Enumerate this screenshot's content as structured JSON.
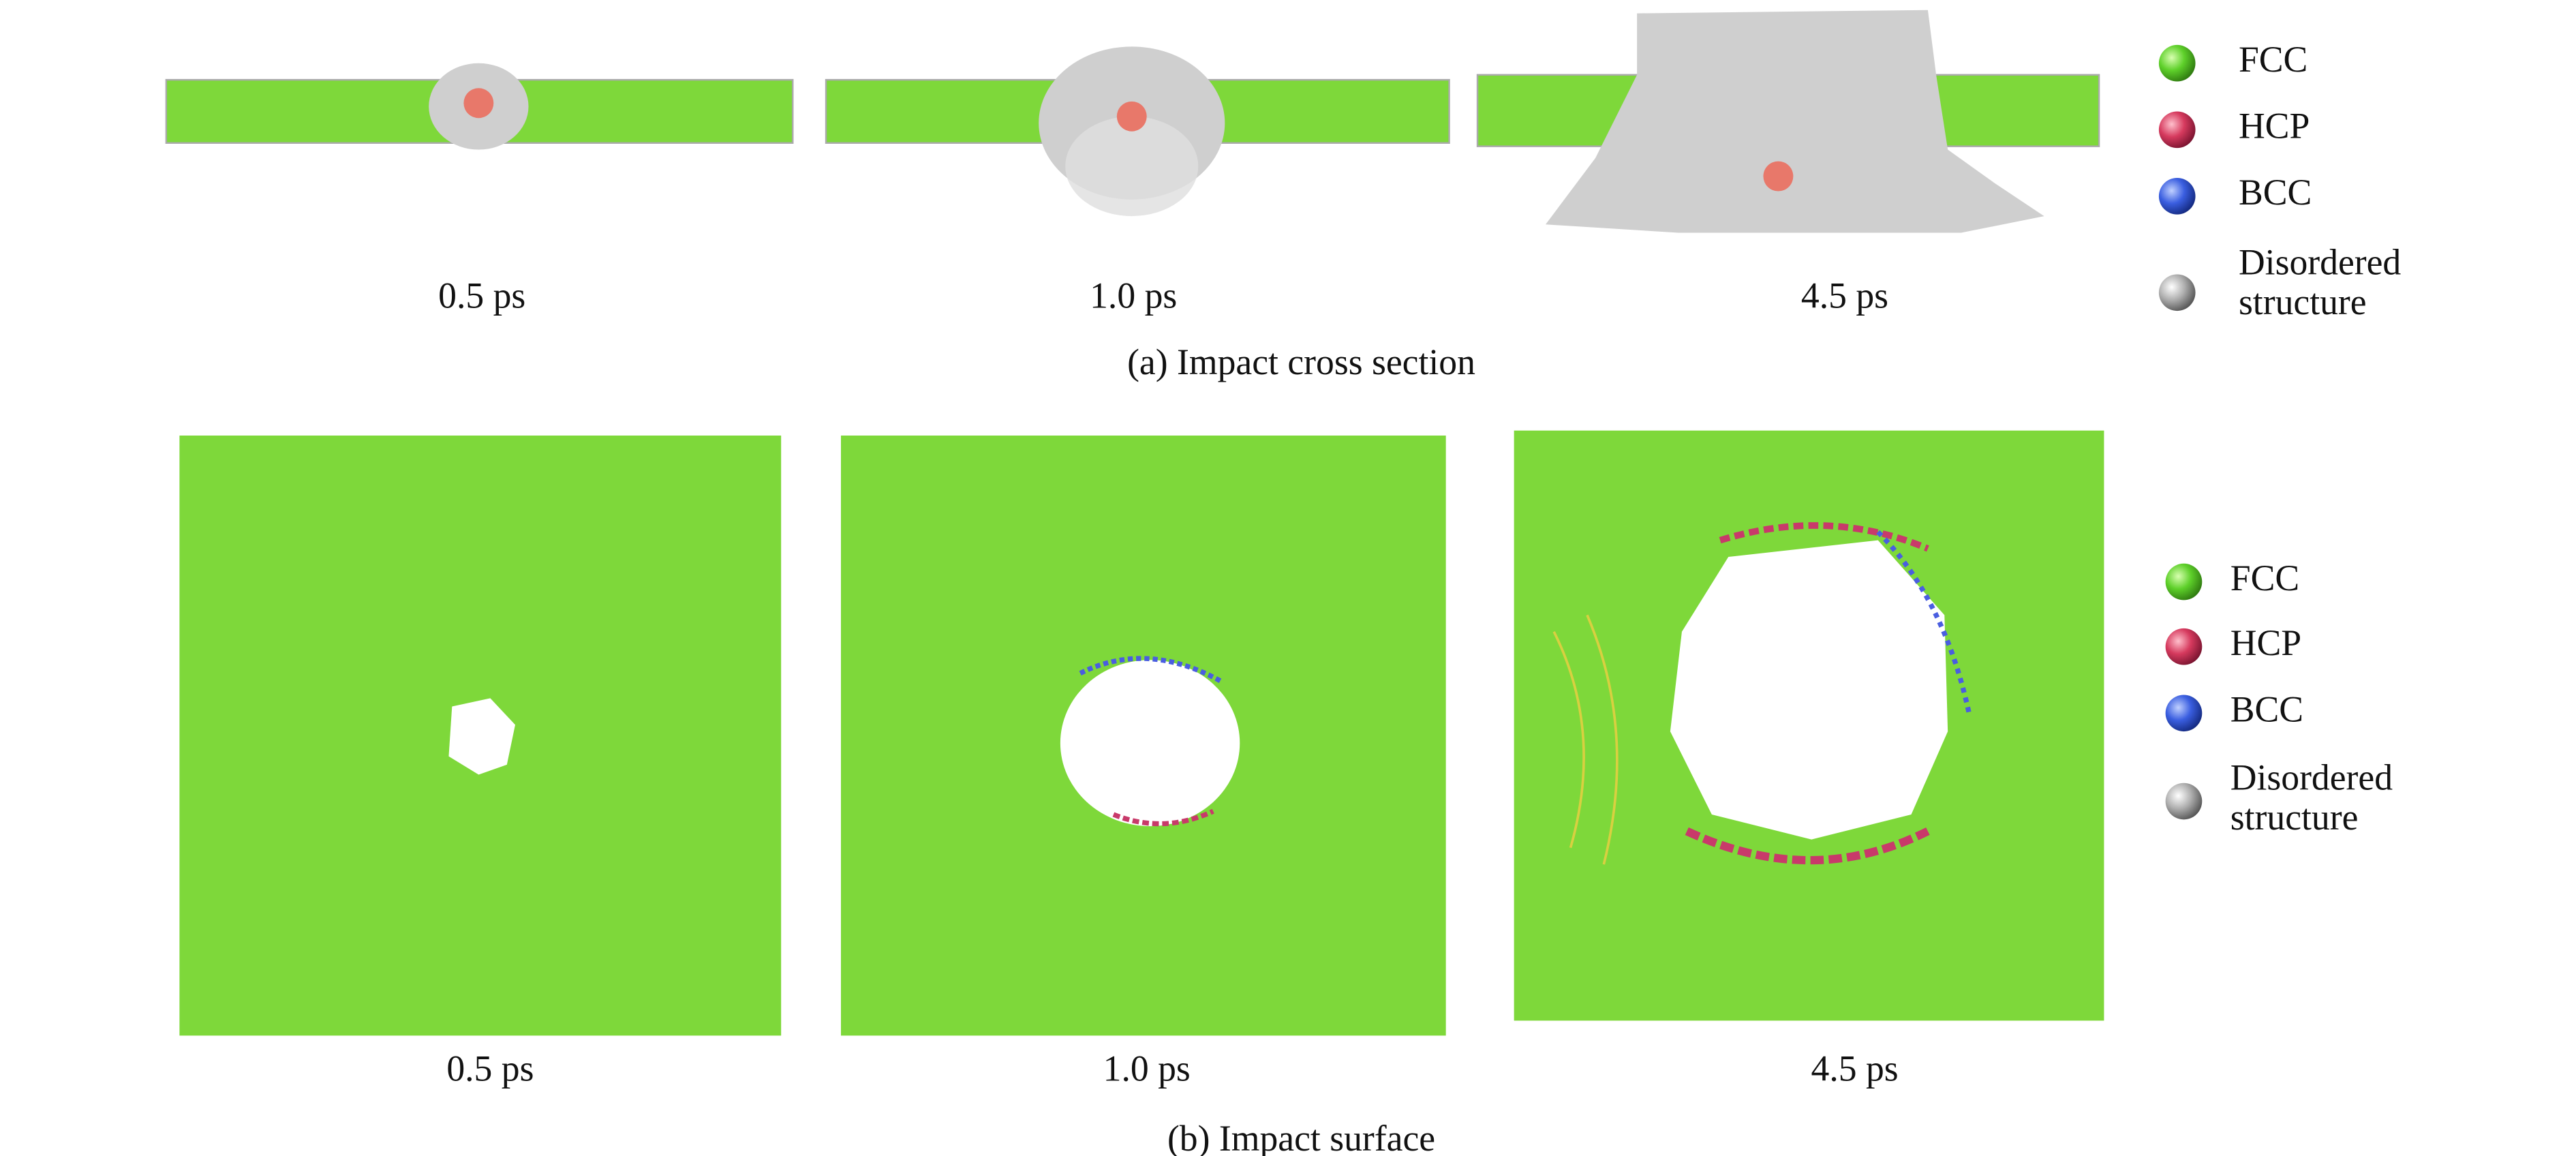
{
  "panel_a": {
    "caption": "(a) Impact cross section",
    "times": [
      "0.5 ps",
      "1.0 ps",
      "4.5 ps"
    ],
    "legend": [
      {
        "lines": [
          "FCC"
        ]
      },
      {
        "lines": [
          "HCP"
        ]
      },
      {
        "lines": [
          "BCC"
        ]
      },
      {
        "lines": [
          "Disordered",
          "structure"
        ]
      }
    ]
  },
  "panel_b": {
    "caption": "(b) Impact surface",
    "times": [
      "0.5 ps",
      "1.0 ps",
      "4.5 ps"
    ],
    "legend": [
      {
        "lines": [
          "FCC"
        ]
      },
      {
        "lines": [
          "HCP"
        ]
      },
      {
        "lines": [
          "BCC"
        ]
      },
      {
        "lines": [
          "Disordered",
          "structure"
        ]
      }
    ]
  }
}
